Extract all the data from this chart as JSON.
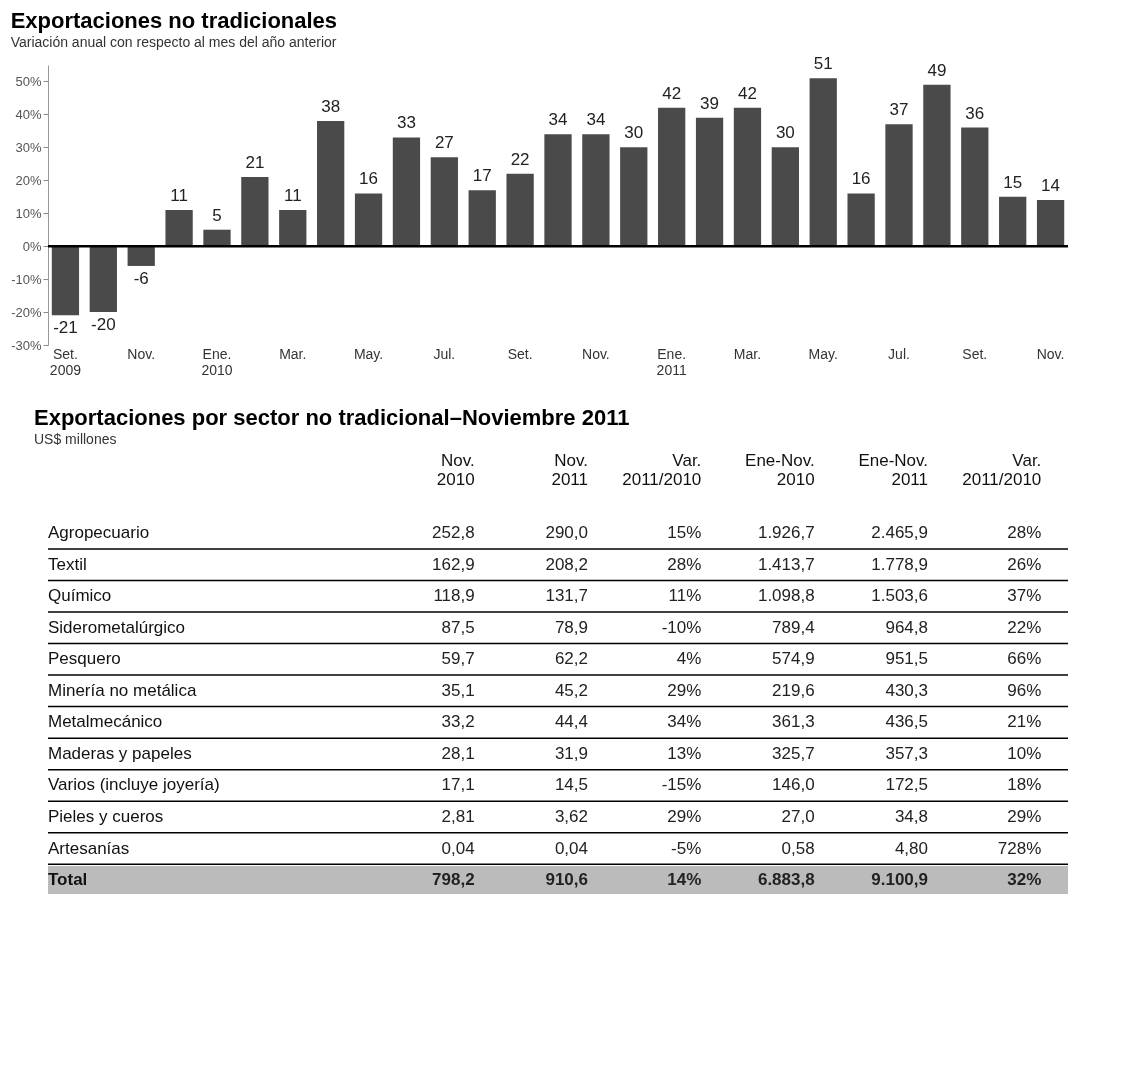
{
  "chart_data": [
    {
      "type": "bar",
      "title": "Exportaciones no tradicionales",
      "subtitle": "Variación anual con respecto al mes del año anterior",
      "categories": [
        "Set. 2009",
        null,
        "Nov.",
        null,
        "Ene. 2010",
        null,
        "Mar.",
        null,
        "May.",
        null,
        "Jul.",
        null,
        "Set.",
        null,
        "Nov.",
        null,
        "Ene. 2011",
        null,
        "Mar.",
        null,
        "May.",
        null,
        "Jul.",
        null,
        "Set.",
        null,
        "Nov."
      ],
      "values": [
        -21,
        -20,
        -6,
        11,
        5,
        21,
        11,
        38,
        16,
        33,
        27,
        17,
        22,
        34,
        34,
        30,
        42,
        39,
        42,
        30,
        51,
        16,
        37,
        49,
        36,
        15,
        14
      ],
      "color": "#4a4a4a",
      "data_labels": true,
      "ylim": [
        -30,
        55
      ],
      "yticks": [
        {
          "value": -30,
          "label": "-30%"
        },
        {
          "value": -20,
          "label": "-20%"
        },
        {
          "value": -10,
          "label": "-10%"
        },
        {
          "value": 0,
          "label": "0%"
        },
        {
          "value": 10,
          "label": "10%"
        },
        {
          "value": 20,
          "label": "20%"
        },
        {
          "value": 30,
          "label": "30%"
        },
        {
          "value": 40,
          "label": "40%"
        },
        {
          "value": 50,
          "label": "50%"
        }
      ],
      "ref_lines": [
        {
          "axis": "y",
          "value": 0
        }
      ]
    },
    {
      "type": "other",
      "title": "Exportaciones por sector no tradicional–Noviembre 2011",
      "subtitle": "US$ millones",
      "categories": [
        "Nov. 2010",
        "Nov. 2011",
        "Var. 2011/2010",
        "Ene-Nov. 2010",
        "Ene-Nov. 2011",
        "Var. 2011/2010"
      ],
      "y_categories": [
        "Agropecuario",
        "Textil",
        "Químico",
        "Siderometalúrgico",
        "Pesquero",
        "Minería no metálica",
        "Metalmecánico",
        "Maderas y papeles",
        "Varios (incluye joyería)",
        "Pieles y cueros",
        "Artesanías",
        "Total"
      ],
      "cell_labels": [
        [
          "252,8",
          "290,0",
          "15%",
          "1.926,7",
          "2.465,9",
          "28%"
        ],
        [
          "162,9",
          "208,2",
          "28%",
          "1.413,7",
          "1.778,9",
          "26%"
        ],
        [
          "118,9",
          "131,7",
          "11%",
          "1.098,8",
          "1.503,6",
          "37%"
        ],
        [
          "87,5",
          "78,9",
          "-10%",
          "789,4",
          "964,8",
          "22%"
        ],
        [
          "59,7",
          "62,2",
          "4%",
          "574,9",
          "951,5",
          "66%"
        ],
        [
          "35,1",
          "45,2",
          "29%",
          "219,6",
          "430,3",
          "96%"
        ],
        [
          "33,2",
          "44,4",
          "34%",
          "361,3",
          "436,5",
          "21%"
        ],
        [
          "28,1",
          "31,9",
          "13%",
          "325,7",
          "357,3",
          "10%"
        ],
        [
          "17,1",
          "14,5",
          "-15%",
          "146,0",
          "172,5",
          "18%"
        ],
        [
          "2,81",
          "3,62",
          "29%",
          "27,0",
          "34,8",
          "29%"
        ],
        [
          "0,04",
          "0,04",
          "-5%",
          "0,58",
          "4,80",
          "728%"
        ],
        [
          "798,2",
          "910,6",
          "14%",
          "6.883,8",
          "9.100,9",
          "32%"
        ]
      ]
    }
  ]
}
